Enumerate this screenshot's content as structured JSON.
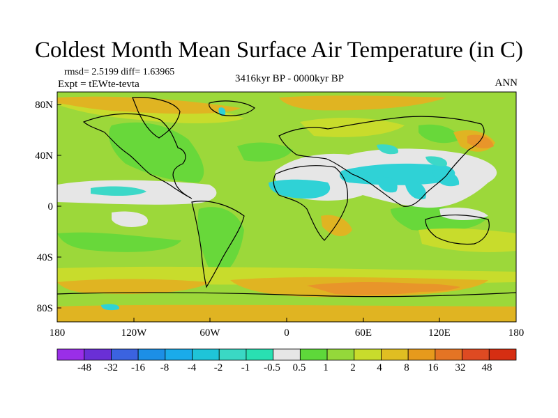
{
  "title": "Coldest Month Mean Surface Air Temperature (in C)",
  "stats": "rmsd= 2.5199 diff= 1.63965",
  "experiment": "Expt = tEWte-tevta",
  "period": "3416kyr BP - 0000kyr BP",
  "season": "ANN",
  "axes": {
    "lat_ticks": [
      "80N",
      "40N",
      "0",
      "40S",
      "80S"
    ],
    "lon_ticks": [
      "180",
      "120W",
      "60W",
      "0",
      "60E",
      "120E",
      "180"
    ]
  },
  "colorbar": {
    "labels": [
      "-48",
      "-32",
      "-16",
      "-8",
      "-4",
      "-2",
      "-1",
      "-0.5",
      "0.5",
      "1",
      "2",
      "4",
      "8",
      "16",
      "32",
      "48"
    ],
    "colors": [
      "#9a2ee8",
      "#6a2fd6",
      "#3b63e0",
      "#1c8fe6",
      "#1aabea",
      "#1fc4d8",
      "#3ad8c4",
      "#29e0b2",
      "#e6e6e6",
      "#5ed83a",
      "#94d83a",
      "#c8dc2c",
      "#e0be22",
      "#e69a1c",
      "#e47424",
      "#de4a22",
      "#d62e12"
    ]
  },
  "map_colors": {
    "background": "#9cd83a",
    "green": "#68d83a",
    "yellow": "#c8dc2c",
    "orange": "#e0b422",
    "deep_orange": "#e8952a",
    "white": "#e6e6e6",
    "cyan": "#2fd2d6",
    "light_cyan": "#3cd8c8"
  }
}
